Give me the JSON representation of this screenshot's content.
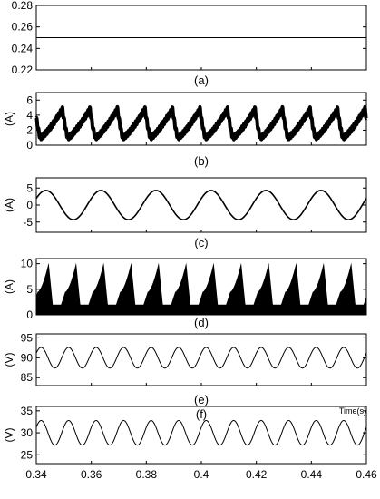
{
  "chart_data": [
    {
      "type": "line",
      "caption": "(a)",
      "ylabel": "",
      "ylim": [
        0.22,
        0.28
      ],
      "yticks": [
        "0.28",
        "0.26",
        "0.24",
        "0.22"
      ],
      "series": [
        {
          "mean": 0.25,
          "amplitude": 0,
          "cycles": 0,
          "style": "flat"
        }
      ]
    },
    {
      "type": "line",
      "caption": "(b)",
      "ylabel": "(A)",
      "ylim": [
        0,
        7
      ],
      "yticks": [
        "6",
        "4",
        "2",
        "0"
      ],
      "series": [
        {
          "min": 1.0,
          "max": 4.8,
          "cycles": 12,
          "ripple": 0.6,
          "style": "sawtooth-ripple"
        }
      ]
    },
    {
      "type": "line",
      "caption": "(c)",
      "ylabel": "(A)",
      "ylim": [
        -8,
        8
      ],
      "yticks": [
        "5",
        "0",
        "-5"
      ],
      "series": [
        {
          "mean": 0,
          "amplitude": 4.3,
          "cycles": 6,
          "style": "sine"
        }
      ]
    },
    {
      "type": "area",
      "caption": "(d)",
      "ylabel": "(A)",
      "ylim": [
        0,
        11
      ],
      "yticks": [
        "10",
        "5",
        "0"
      ],
      "series": [
        {
          "base_min": 2.0,
          "peak": 10.2,
          "cycles": 12,
          "style": "chopped-envelope"
        }
      ]
    },
    {
      "type": "line",
      "caption": "(e)",
      "ylabel": "(V)",
      "ylim": [
        83,
        96
      ],
      "yticks": [
        "95",
        "90",
        "85"
      ],
      "series": [
        {
          "mean": 90,
          "amplitude": 2.6,
          "cycles": 12,
          "style": "sine"
        }
      ]
    },
    {
      "type": "line",
      "caption": "(f)",
      "ylabel": "(V)",
      "ylim": [
        23,
        36
      ],
      "yticks": [
        "35",
        "30",
        "25"
      ],
      "series": [
        {
          "mean": 30,
          "amplitude": 2.8,
          "cycles": 12,
          "style": "sine"
        }
      ]
    }
  ],
  "time_axis": {
    "xlim": [
      0.34,
      0.46
    ],
    "xticks": [
      "0.34",
      "0.36",
      "0.38",
      "0.4",
      "0.42",
      "0.44",
      "0.46"
    ],
    "label": "Time(s)"
  }
}
